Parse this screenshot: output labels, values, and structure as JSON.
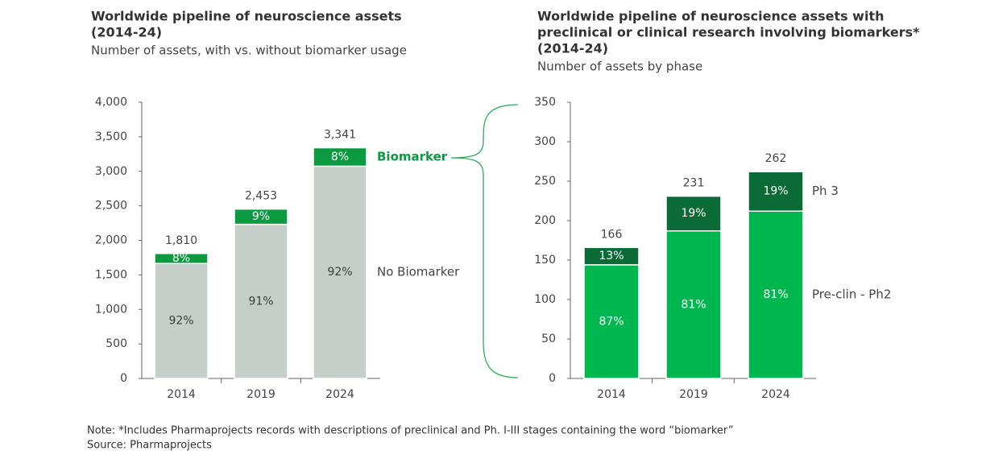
{
  "chart_data": [
    {
      "type": "stacked_bar",
      "title": [
        "Worldwide pipeline of neuroscience assets",
        "(2014-24)"
      ],
      "subtitle": "Number of assets, with vs. without biomarker usage",
      "categories": [
        "2014",
        "2019",
        "2024"
      ],
      "series": [
        {
          "name": "No Biomarker",
          "color": "#c6cec9",
          "values": [
            1665,
            2232,
            3074
          ],
          "value_labels": [
            "92%",
            "91%",
            "92%"
          ]
        },
        {
          "name": "Biomarker",
          "color": "#0b9a3f",
          "values": [
            145,
            221,
            267
          ],
          "value_labels": [
            "8%",
            "9%",
            "8%"
          ]
        }
      ],
      "totals": [
        1810,
        2453,
        3341
      ],
      "total_labels": [
        "1,810",
        "2,453",
        "3,341"
      ],
      "ylim": [
        0,
        4000
      ],
      "yticks": [
        0,
        500,
        {
          "value": 1000,
          "label": "1,000"
        },
        {
          "value": 1500,
          "label": "1,500"
        },
        {
          "value": 2000,
          "label": "2,000"
        },
        {
          "value": 2500,
          "label": "2,500"
        },
        {
          "value": 3000,
          "label": "3,000"
        },
        {
          "value": 3500,
          "label": "3,500"
        },
        {
          "value": 4000,
          "label": "4,000"
        }
      ]
    },
    {
      "type": "stacked_bar",
      "title": [
        "Worldwide pipeline of neuroscience assets with",
        "preclinical or clinical research involving biomarkers*",
        "(2014-24)"
      ],
      "subtitle": "Number of assets by phase",
      "categories": [
        "2014",
        "2019",
        "2024"
      ],
      "series": [
        {
          "name": "Pre-clin - Ph2",
          "color": "#00b64e",
          "values": [
            144,
            187,
            212
          ],
          "value_labels": [
            "87%",
            "81%",
            "81%"
          ]
        },
        {
          "name": "Ph 3",
          "color": "#0b6b37",
          "values": [
            22,
            44,
            50
          ],
          "value_labels": [
            "13%",
            "19%",
            "19%"
          ]
        }
      ],
      "totals": [
        166,
        231,
        262
      ],
      "ylim": [
        0,
        350
      ],
      "yticks": [
        0,
        50,
        100,
        150,
        200,
        250,
        300,
        350
      ]
    }
  ],
  "note": "Note: *Includes Pharmaprojects records with descriptions of preclinical and Ph. I-III stages containing the word “biomarker”",
  "source": "Source: Pharmaprojects"
}
